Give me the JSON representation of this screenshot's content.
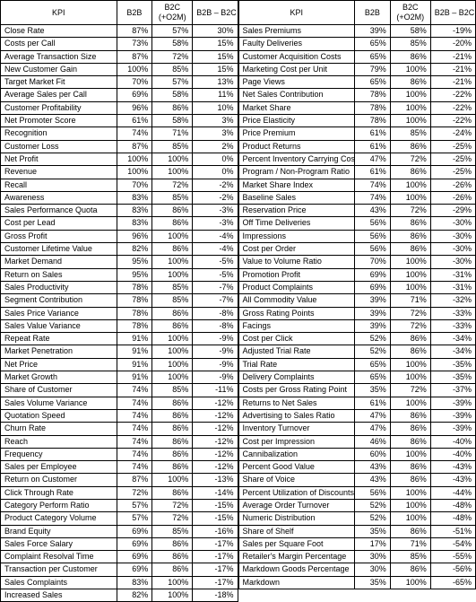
{
  "headers": {
    "kpi": "KPI",
    "b2b": "B2B",
    "b2c_line1": "B2C",
    "b2c_line2": "(+O2M)",
    "diff": "B2B – B2C"
  },
  "left": [
    {
      "kpi": "Close Rate",
      "b2b": "87%",
      "b2c": "57%",
      "diff": "30%"
    },
    {
      "kpi": "Costs per Call",
      "b2b": "73%",
      "b2c": "58%",
      "diff": "15%"
    },
    {
      "kpi": "Average Transaction Size",
      "b2b": "87%",
      "b2c": "72%",
      "diff": "15%"
    },
    {
      "kpi": "New Customer Gain",
      "b2b": "100%",
      "b2c": "85%",
      "diff": "15%"
    },
    {
      "kpi": "Target Market Fit",
      "b2b": "70%",
      "b2c": "57%",
      "diff": "13%"
    },
    {
      "kpi": "Average Sales per Call",
      "b2b": "69%",
      "b2c": "58%",
      "diff": "11%"
    },
    {
      "kpi": "Customer Profitability",
      "b2b": "96%",
      "b2c": "86%",
      "diff": "10%"
    },
    {
      "kpi": "Net Promoter Score",
      "b2b": "61%",
      "b2c": "58%",
      "diff": "3%"
    },
    {
      "kpi": "Recognition",
      "b2b": "74%",
      "b2c": "71%",
      "diff": "3%"
    },
    {
      "kpi": "Customer Loss",
      "b2b": "87%",
      "b2c": "85%",
      "diff": "2%"
    },
    {
      "kpi": "Net Profit",
      "b2b": "100%",
      "b2c": "100%",
      "diff": "0%"
    },
    {
      "kpi": "Revenue",
      "b2b": "100%",
      "b2c": "100%",
      "diff": "0%"
    },
    {
      "kpi": "Recall",
      "b2b": "70%",
      "b2c": "72%",
      "diff": "-2%"
    },
    {
      "kpi": "Awareness",
      "b2b": "83%",
      "b2c": "85%",
      "diff": "-2%"
    },
    {
      "kpi": "Sales Performance Quota",
      "b2b": "83%",
      "b2c": "86%",
      "diff": "-3%"
    },
    {
      "kpi": "Cost per Lead",
      "b2b": "83%",
      "b2c": "86%",
      "diff": "-3%"
    },
    {
      "kpi": "Gross Profit",
      "b2b": "96%",
      "b2c": "100%",
      "diff": "-4%"
    },
    {
      "kpi": "Customer Lifetime Value",
      "b2b": "82%",
      "b2c": "86%",
      "diff": "-4%"
    },
    {
      "kpi": "Market Demand",
      "b2b": "95%",
      "b2c": "100%",
      "diff": "-5%"
    },
    {
      "kpi": "Return on Sales",
      "b2b": "95%",
      "b2c": "100%",
      "diff": "-5%"
    },
    {
      "kpi": "Sales Productivity",
      "b2b": "78%",
      "b2c": "85%",
      "diff": "-7%"
    },
    {
      "kpi": "Segment Contribution",
      "b2b": "78%",
      "b2c": "85%",
      "diff": "-7%"
    },
    {
      "kpi": "Sales Price Variance",
      "b2b": "78%",
      "b2c": "86%",
      "diff": "-8%"
    },
    {
      "kpi": "Sales Value Variance",
      "b2b": "78%",
      "b2c": "86%",
      "diff": "-8%"
    },
    {
      "kpi": "Repeat Rate",
      "b2b": "91%",
      "b2c": "100%",
      "diff": "-9%"
    },
    {
      "kpi": "Market Penetration",
      "b2b": "91%",
      "b2c": "100%",
      "diff": "-9%"
    },
    {
      "kpi": "Net Price",
      "b2b": "91%",
      "b2c": "100%",
      "diff": "-9%"
    },
    {
      "kpi": "Market Growth",
      "b2b": "91%",
      "b2c": "100%",
      "diff": "-9%"
    },
    {
      "kpi": "Share of Customer",
      "b2b": "74%",
      "b2c": "85%",
      "diff": "-11%"
    },
    {
      "kpi": "Sales Volume Variance",
      "b2b": "74%",
      "b2c": "86%",
      "diff": "-12%"
    },
    {
      "kpi": "Quotation Speed",
      "b2b": "74%",
      "b2c": "86%",
      "diff": "-12%"
    },
    {
      "kpi": "Churn Rate",
      "b2b": "74%",
      "b2c": "86%",
      "diff": "-12%"
    },
    {
      "kpi": "Reach",
      "b2b": "74%",
      "b2c": "86%",
      "diff": "-12%"
    },
    {
      "kpi": "Frequency",
      "b2b": "74%",
      "b2c": "86%",
      "diff": "-12%"
    },
    {
      "kpi": "Sales per Employee",
      "b2b": "74%",
      "b2c": "86%",
      "diff": "-12%"
    },
    {
      "kpi": "Return on Customer",
      "b2b": "87%",
      "b2c": "100%",
      "diff": "-13%"
    },
    {
      "kpi": "Click Through Rate",
      "b2b": "72%",
      "b2c": "86%",
      "diff": "-14%"
    },
    {
      "kpi": "Category Perform Ratio",
      "b2b": "57%",
      "b2c": "72%",
      "diff": "-15%"
    },
    {
      "kpi": "Product Category Volume",
      "b2b": "57%",
      "b2c": "72%",
      "diff": "-15%"
    },
    {
      "kpi": "Brand Equity",
      "b2b": "69%",
      "b2c": "85%",
      "diff": "-16%"
    },
    {
      "kpi": "Sales Force Salary",
      "b2b": "69%",
      "b2c": "86%",
      "diff": "-17%"
    },
    {
      "kpi": "Complaint Resolval Time",
      "b2b": "69%",
      "b2c": "86%",
      "diff": "-17%"
    },
    {
      "kpi": "Transaction per Customer",
      "b2b": "69%",
      "b2c": "86%",
      "diff": "-17%"
    },
    {
      "kpi": "Sales Complaints",
      "b2b": "83%",
      "b2c": "100%",
      "diff": "-17%"
    },
    {
      "kpi": "Increased Sales",
      "b2b": "82%",
      "b2c": "100%",
      "diff": "-18%"
    }
  ],
  "right": [
    {
      "kpi": "Sales Premiums",
      "b2b": "39%",
      "b2c": "58%",
      "diff": "-19%"
    },
    {
      "kpi": "Faulty Deliveries",
      "b2b": "65%",
      "b2c": "85%",
      "diff": "-20%"
    },
    {
      "kpi": "Customer Acquisition Costs",
      "b2b": "65%",
      "b2c": "86%",
      "diff": "-21%"
    },
    {
      "kpi": "Marketing Cost per Unit",
      "b2b": "79%",
      "b2c": "100%",
      "diff": "-21%"
    },
    {
      "kpi": "Page Views",
      "b2b": "65%",
      "b2c": "86%",
      "diff": "-21%"
    },
    {
      "kpi": "Net Sales Contribution",
      "b2b": "78%",
      "b2c": "100%",
      "diff": "-22%"
    },
    {
      "kpi": "Market Share",
      "b2b": "78%",
      "b2c": "100%",
      "diff": "-22%"
    },
    {
      "kpi": "Price Elasticity",
      "b2b": "78%",
      "b2c": "100%",
      "diff": "-22%"
    },
    {
      "kpi": "Price Premium",
      "b2b": "61%",
      "b2c": "85%",
      "diff": "-24%"
    },
    {
      "kpi": "Product Returns",
      "b2b": "61%",
      "b2c": "86%",
      "diff": "-25%"
    },
    {
      "kpi": "Percent Inventory Carrying Costs",
      "b2b": "47%",
      "b2c": "72%",
      "diff": "-25%"
    },
    {
      "kpi": "Program / Non-Program Ratio",
      "b2b": "61%",
      "b2c": "86%",
      "diff": "-25%"
    },
    {
      "kpi": "Market Share Index",
      "b2b": "74%",
      "b2c": "100%",
      "diff": "-26%"
    },
    {
      "kpi": "Baseline Sales",
      "b2b": "74%",
      "b2c": "100%",
      "diff": "-26%"
    },
    {
      "kpi": "Reservation Price",
      "b2b": "43%",
      "b2c": "72%",
      "diff": "-29%"
    },
    {
      "kpi": "Off Time Deliveries",
      "b2b": "56%",
      "b2c": "86%",
      "diff": "-30%"
    },
    {
      "kpi": "Impressions",
      "b2b": "56%",
      "b2c": "86%",
      "diff": "-30%"
    },
    {
      "kpi": "Cost per Order",
      "b2b": "56%",
      "b2c": "86%",
      "diff": "-30%"
    },
    {
      "kpi": "Value to Volume Ratio",
      "b2b": "70%",
      "b2c": "100%",
      "diff": "-30%"
    },
    {
      "kpi": "Promotion Profit",
      "b2b": "69%",
      "b2c": "100%",
      "diff": "-31%"
    },
    {
      "kpi": "Product Complaints",
      "b2b": "69%",
      "b2c": "100%",
      "diff": "-31%"
    },
    {
      "kpi": "All Commodity Value",
      "b2b": "39%",
      "b2c": "71%",
      "diff": "-32%"
    },
    {
      "kpi": "Gross Rating Points",
      "b2b": "39%",
      "b2c": "72%",
      "diff": "-33%"
    },
    {
      "kpi": "Facings",
      "b2b": "39%",
      "b2c": "72%",
      "diff": "-33%"
    },
    {
      "kpi": "Cost per Click",
      "b2b": "52%",
      "b2c": "86%",
      "diff": "-34%"
    },
    {
      "kpi": "Adjusted Trial Rate",
      "b2b": "52%",
      "b2c": "86%",
      "diff": "-34%"
    },
    {
      "kpi": "Trial Rate",
      "b2b": "65%",
      "b2c": "100%",
      "diff": "-35%"
    },
    {
      "kpi": "Delivery Complaints",
      "b2b": "65%",
      "b2c": "100%",
      "diff": "-35%"
    },
    {
      "kpi": "Costs per Gross Rating Point",
      "b2b": "35%",
      "b2c": "72%",
      "diff": "-37%"
    },
    {
      "kpi": "Returns to Net Sales",
      "b2b": "61%",
      "b2c": "100%",
      "diff": "-39%"
    },
    {
      "kpi": "Advertising to Sales Ratio",
      "b2b": "47%",
      "b2c": "86%",
      "diff": "-39%"
    },
    {
      "kpi": "Inventory Turnover",
      "b2b": "47%",
      "b2c": "86%",
      "diff": "-39%"
    },
    {
      "kpi": "Cost per Impression",
      "b2b": "46%",
      "b2c": "86%",
      "diff": "-40%"
    },
    {
      "kpi": "Cannibalization",
      "b2b": "60%",
      "b2c": "100%",
      "diff": "-40%"
    },
    {
      "kpi": "Percent Good Value",
      "b2b": "43%",
      "b2c": "86%",
      "diff": "-43%"
    },
    {
      "kpi": "Share of Voice",
      "b2b": "43%",
      "b2c": "86%",
      "diff": "-43%"
    },
    {
      "kpi": "Percent Utilization of Discounts",
      "b2b": "56%",
      "b2c": "100%",
      "diff": "-44%"
    },
    {
      "kpi": "Average Order Turnover",
      "b2b": "52%",
      "b2c": "100%",
      "diff": "-48%"
    },
    {
      "kpi": "Numeric Distribution",
      "b2b": "52%",
      "b2c": "100%",
      "diff": "-48%"
    },
    {
      "kpi": "Share of Shelf",
      "b2b": "35%",
      "b2c": "86%",
      "diff": "-51%"
    },
    {
      "kpi": "Sales per Square Foot",
      "b2b": "17%",
      "b2c": "71%",
      "diff": "-54%"
    },
    {
      "kpi": "Retailer's Margin Percentage",
      "b2b": "30%",
      "b2c": "85%",
      "diff": "-55%"
    },
    {
      "kpi": "Markdown Goods Percentage",
      "b2b": "30%",
      "b2c": "86%",
      "diff": "-56%"
    },
    {
      "kpi": "Markdown",
      "b2b": "35%",
      "b2c": "100%",
      "diff": "-65%"
    }
  ]
}
